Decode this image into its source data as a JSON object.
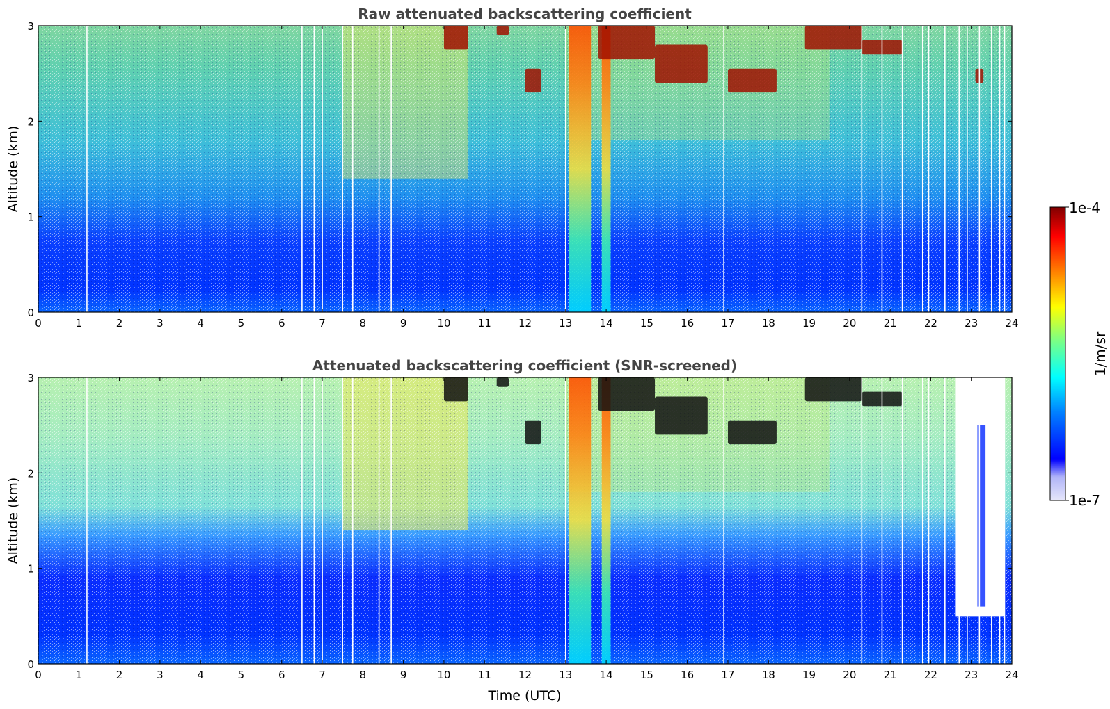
{
  "chart_data": [
    {
      "type": "heatmap",
      "title": "Raw attenuated backscattering coefficient",
      "xlabel": "",
      "ylabel": "Altitude (km)",
      "xlim": [
        0,
        24
      ],
      "ylim": [
        0,
        3
      ],
      "x_ticks": [
        "0",
        "1",
        "2",
        "3",
        "4",
        "5",
        "6",
        "7",
        "8",
        "9",
        "10",
        "11",
        "12",
        "13",
        "14",
        "15",
        "16",
        "17",
        "18",
        "19",
        "20",
        "21",
        "22",
        "23",
        "24"
      ],
      "y_ticks": [
        "0",
        "1",
        "2",
        "3"
      ],
      "features": {
        "aerosol_plumes_hours": [
          13.35,
          14.0
        ],
        "cloud_segments": [
          {
            "t0": 10.0,
            "t1": 10.6,
            "z0": 2.75,
            "z1": 3.0
          },
          {
            "t0": 11.3,
            "t1": 11.6,
            "z0": 2.9,
            "z1": 3.0
          },
          {
            "t0": 12.0,
            "t1": 12.4,
            "z0": 2.3,
            "z1": 2.55
          },
          {
            "t0": 13.8,
            "t1": 15.2,
            "z0": 2.65,
            "z1": 3.0
          },
          {
            "t0": 15.2,
            "t1": 16.5,
            "z0": 2.4,
            "z1": 2.8
          },
          {
            "t0": 17.0,
            "t1": 18.2,
            "z0": 2.3,
            "z1": 2.55
          },
          {
            "t0": 18.9,
            "t1": 20.3,
            "z0": 2.75,
            "z1": 3.0
          },
          {
            "t0": 20.3,
            "t1": 21.3,
            "z0": 2.7,
            "z1": 2.85
          },
          {
            "t0": 23.1,
            "t1": 23.3,
            "z0": 2.4,
            "z1": 2.55
          }
        ],
        "data_gaps_hours": [
          1.2,
          6.5,
          6.8,
          7.0,
          7.5,
          7.75,
          8.4,
          8.7,
          13.0,
          16.9,
          20.3,
          20.8,
          21.3,
          21.8,
          21.95,
          22.35,
          22.7,
          22.9,
          23.2,
          23.5,
          23.7,
          23.82
        ]
      }
    },
    {
      "type": "heatmap",
      "title": "Attenuated backscattering coefficient (SNR-screened)",
      "xlabel": "Time (UTC)",
      "ylabel": "Altitude (km)",
      "xlim": [
        0,
        24
      ],
      "ylim": [
        0,
        3
      ],
      "x_ticks": [
        "0",
        "1",
        "2",
        "3",
        "4",
        "5",
        "6",
        "7",
        "8",
        "9",
        "10",
        "11",
        "12",
        "13",
        "14",
        "15",
        "16",
        "17",
        "18",
        "19",
        "20",
        "21",
        "22",
        "23",
        "24"
      ],
      "y_ticks": [
        "0",
        "1",
        "2",
        "3"
      ],
      "features": {
        "screened_top_km": 0.5,
        "screened_window_hours": [
          22.6,
          23.8
        ]
      }
    }
  ],
  "colorbar": {
    "label": "1/m/sr",
    "max_label": "1e-4",
    "min_label": "1e-7",
    "colormap": "jet",
    "scale": "log",
    "range": [
      1e-07,
      0.0001
    ],
    "colors": [
      "#e6e6fa",
      "#b0b4f8",
      "#0000ff",
      "#0080ff",
      "#00ffff",
      "#80ff80",
      "#ffff00",
      "#ff8000",
      "#ff0000",
      "#800000"
    ]
  }
}
